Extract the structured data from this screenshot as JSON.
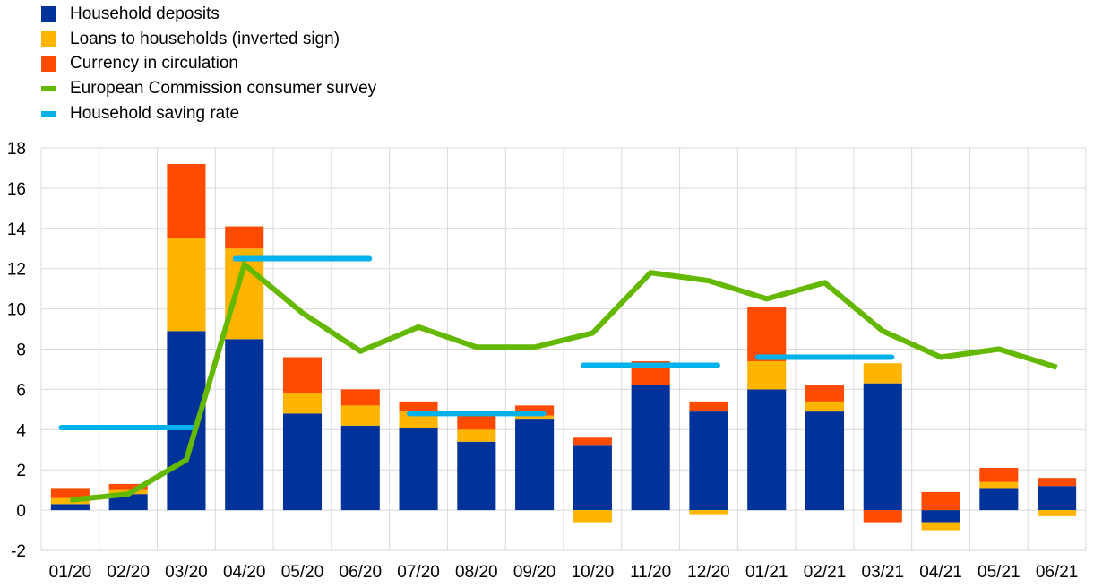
{
  "chart_data": {
    "type": "bar",
    "stacked": true,
    "title": "",
    "xlabel": "",
    "ylabel": "",
    "ylim": [
      -2,
      18
    ],
    "yticks": [
      -2,
      0,
      2,
      4,
      6,
      8,
      10,
      12,
      14,
      16,
      18
    ],
    "grid": true,
    "legend_position": "top-left",
    "categories": [
      "01/20",
      "02/20",
      "03/20",
      "04/20",
      "05/20",
      "06/20",
      "07/20",
      "08/20",
      "09/20",
      "10/20",
      "11/20",
      "12/20",
      "01/21",
      "02/21",
      "03/21",
      "04/21",
      "05/21",
      "06/21"
    ],
    "series": [
      {
        "name": "Household deposits",
        "kind": "bar",
        "color": "#003299",
        "values": [
          0.3,
          0.8,
          8.9,
          8.5,
          4.8,
          4.2,
          4.1,
          3.4,
          4.5,
          3.2,
          6.2,
          4.9,
          6.0,
          4.9,
          6.3,
          -0.6,
          1.1,
          1.2
        ]
      },
      {
        "name": "Loans to households (inverted sign)",
        "kind": "bar",
        "color": "#FFB400",
        "values": [
          0.3,
          0.2,
          4.6,
          4.5,
          1.0,
          1.0,
          0.8,
          0.6,
          0.2,
          -0.6,
          0.0,
          -0.2,
          1.4,
          0.5,
          1.0,
          -0.4,
          0.3,
          -0.3
        ]
      },
      {
        "name": "Currency in circulation",
        "kind": "bar",
        "color": "#FF4B00",
        "values": [
          0.5,
          0.3,
          3.7,
          1.1,
          1.8,
          0.8,
          0.5,
          0.7,
          0.5,
          0.4,
          1.2,
          0.5,
          2.7,
          0.8,
          -0.6,
          0.9,
          0.7,
          0.4
        ]
      },
      {
        "name": "European Commission consumer survey",
        "kind": "line",
        "color": "#65B800",
        "values": [
          0.5,
          0.8,
          2.5,
          12.2,
          9.8,
          7.9,
          9.1,
          8.1,
          8.1,
          8.8,
          11.8,
          11.4,
          10.5,
          11.3,
          8.9,
          7.6,
          8.0,
          7.1
        ]
      },
      {
        "name": "Household saving rate",
        "kind": "quarterly-step",
        "color": "#00B1EA",
        "quarters": [
          {
            "start": "01/20",
            "end": "03/20",
            "value": 4.1
          },
          {
            "start": "04/20",
            "end": "06/20",
            "value": 12.5
          },
          {
            "start": "07/20",
            "end": "09/20",
            "value": 4.8
          },
          {
            "start": "10/20",
            "end": "12/20",
            "value": 7.2
          },
          {
            "start": "01/21",
            "end": "03/21",
            "value": 7.6
          }
        ]
      }
    ]
  }
}
